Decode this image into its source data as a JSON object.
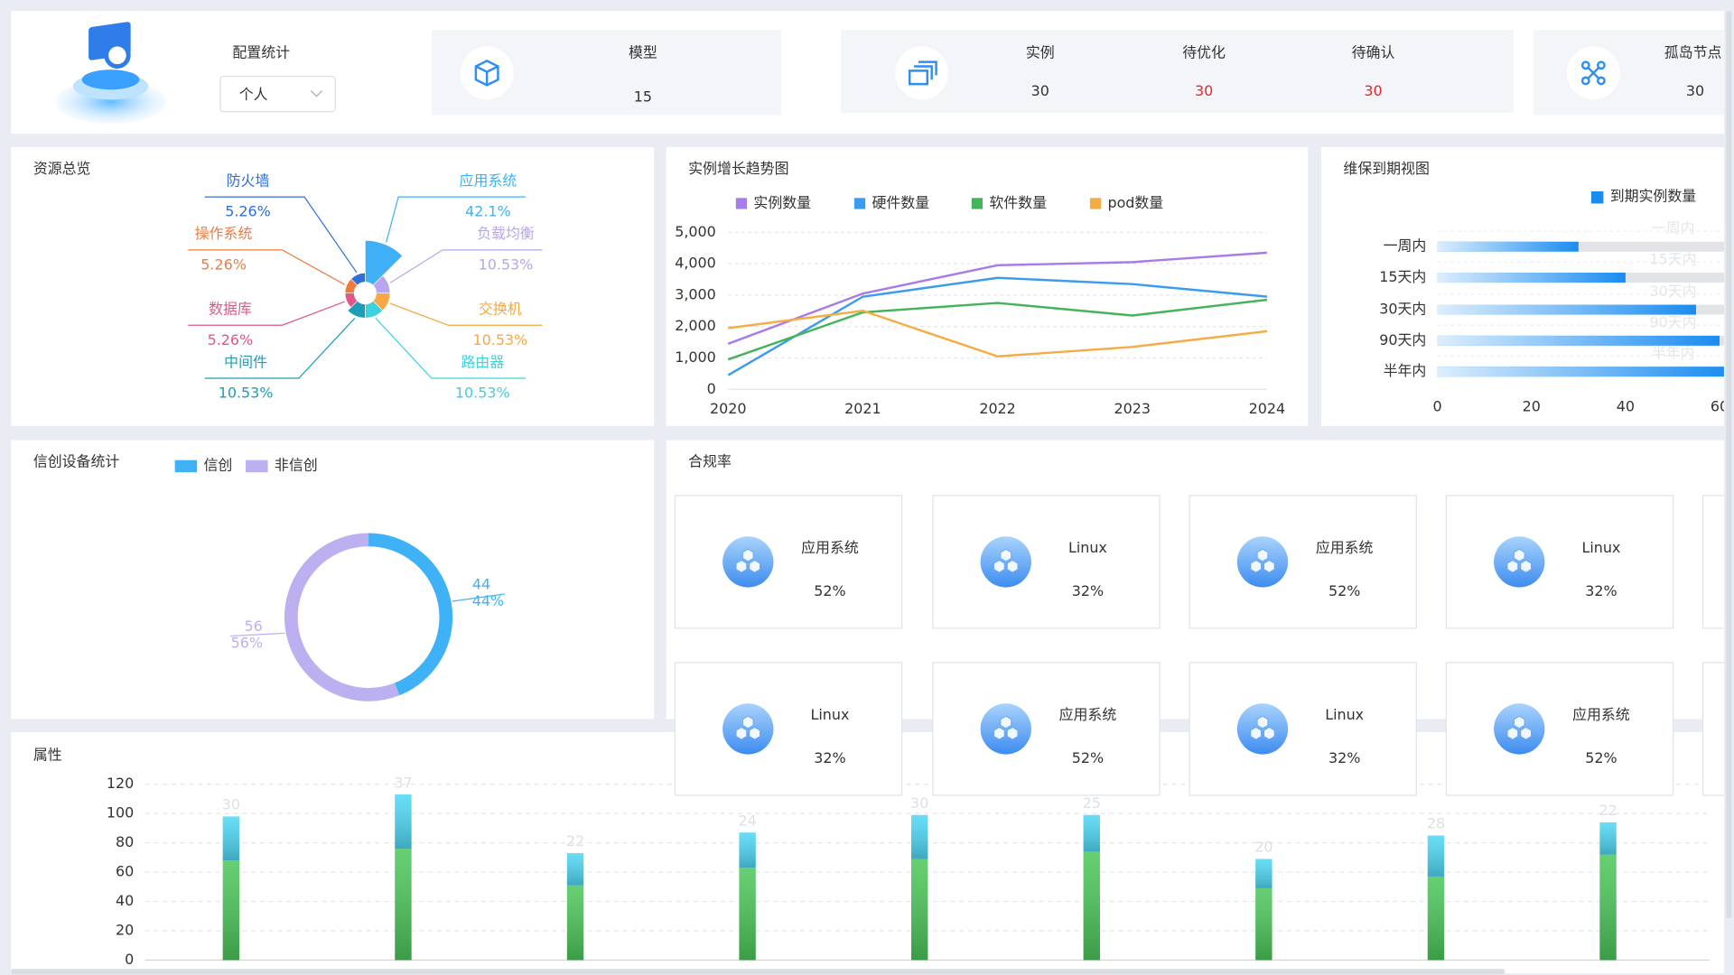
{
  "header": {
    "title": "配置统计",
    "select": "个人",
    "stats": [
      {
        "label": "模型",
        "value": 15
      },
      {
        "label": "实例",
        "value": 30
      },
      {
        "label": "待优化",
        "value": 30
      },
      {
        "label": "待确认",
        "value": 30
      },
      {
        "label": "孤岛节点",
        "value": 30
      }
    ]
  },
  "chart_data": [
    {
      "type": "pie",
      "title": "资源总览",
      "categories": [
        "应用系统",
        "负载均衡",
        "交换机",
        "路由器",
        "中间件",
        "数据库",
        "操作系统",
        "防火墙"
      ],
      "values": [
        42.1,
        10.53,
        10.53,
        10.53,
        10.53,
        5.26,
        5.26,
        5.26
      ],
      "value_labels": [
        "42.1%",
        "10.53%",
        "10.53%",
        "10.53%",
        "10.53%",
        "5.26%",
        "5.26%",
        "5.26%"
      ],
      "colors": [
        "#3fb0f5",
        "#b7a6ee",
        "#f5a844",
        "#3cd2e0",
        "#1e9db8",
        "#e0578a",
        "#f07b3f",
        "#2f6fd6"
      ]
    },
    {
      "type": "line",
      "title": "实例增长趋势图",
      "categories": [
        "2020",
        "2021",
        "2022",
        "2023",
        "2024"
      ],
      "series": [
        {
          "name": "实例数量",
          "color": "#a77bea",
          "values": [
            1450,
            3050,
            3950,
            4050,
            4350
          ]
        },
        {
          "name": "硬件数量",
          "color": "#3a9bf0",
          "values": [
            450,
            2950,
            3550,
            3350,
            2950
          ]
        },
        {
          "name": "软件数量",
          "color": "#45b35a",
          "values": [
            950,
            2450,
            2750,
            2350,
            2850
          ]
        },
        {
          "name": "pod数量",
          "color": "#f5ac45",
          "values": [
            1950,
            2500,
            1050,
            1350,
            1850
          ]
        }
      ],
      "ylim": [
        0,
        5000
      ],
      "yticks": [
        0,
        {
          "value": 1000,
          "label": "1,000"
        },
        {
          "value": 2000,
          "label": "2,000"
        },
        {
          "value": 3000,
          "label": "3,000"
        },
        {
          "value": 4000,
          "label": "4,000"
        },
        {
          "value": 5000,
          "label": "5,000"
        }
      ],
      "grid": true,
      "legend": "top"
    },
    {
      "type": "hbar",
      "title": "维保到期视图",
      "categories": [
        "一周内",
        "15天内",
        "30天内",
        "90天内",
        "半年内"
      ],
      "series": [
        {
          "name": "到期实例数量",
          "color": "#1a8cf0",
          "values": [
            30,
            40,
            55,
            60,
            62
          ]
        }
      ],
      "xlim": [
        0,
        60
      ],
      "xticks": [
        0,
        20,
        40,
        60
      ],
      "legend": "top-right"
    },
    {
      "type": "donut",
      "title": "信创设备统计",
      "categories": [
        "信创",
        "非信创"
      ],
      "values": [
        44,
        56
      ],
      "value_labels": [
        "44%",
        "56%"
      ],
      "colors": [
        "#3fb2f7",
        "#bdb0f0"
      ],
      "legend": "top"
    },
    {
      "type": "stacked-bar",
      "title": "属性",
      "categories": [
        null,
        null,
        null,
        null,
        null,
        null,
        null,
        null,
        null
      ],
      "series": [
        {
          "color": "#4cc75a",
          "values": [
            68,
            76,
            51,
            63,
            69,
            74,
            49,
            57,
            72
          ]
        },
        {
          "color": "#4fd8f5",
          "values": [
            30,
            37,
            22,
            24,
            30,
            25,
            20,
            28,
            22
          ]
        }
      ],
      "ylim": [
        0,
        120
      ],
      "yticks": [
        0,
        20,
        40,
        60,
        80,
        100,
        120
      ],
      "grid": true
    }
  ],
  "compliance": {
    "title": "合规率",
    "cards": [
      {
        "name": "应用系统",
        "value": "52%"
      },
      {
        "name": "Linux",
        "value": "32%"
      },
      {
        "name": "应用系统",
        "value": "52%"
      },
      {
        "name": "Linux",
        "value": "32%"
      },
      {
        "name": "Linux",
        "value": "32%"
      },
      {
        "name": "应用系统",
        "value": "52%"
      },
      {
        "name": "Linux",
        "value": "32%"
      },
      {
        "name": "应用系统",
        "value": "52%"
      }
    ]
  }
}
